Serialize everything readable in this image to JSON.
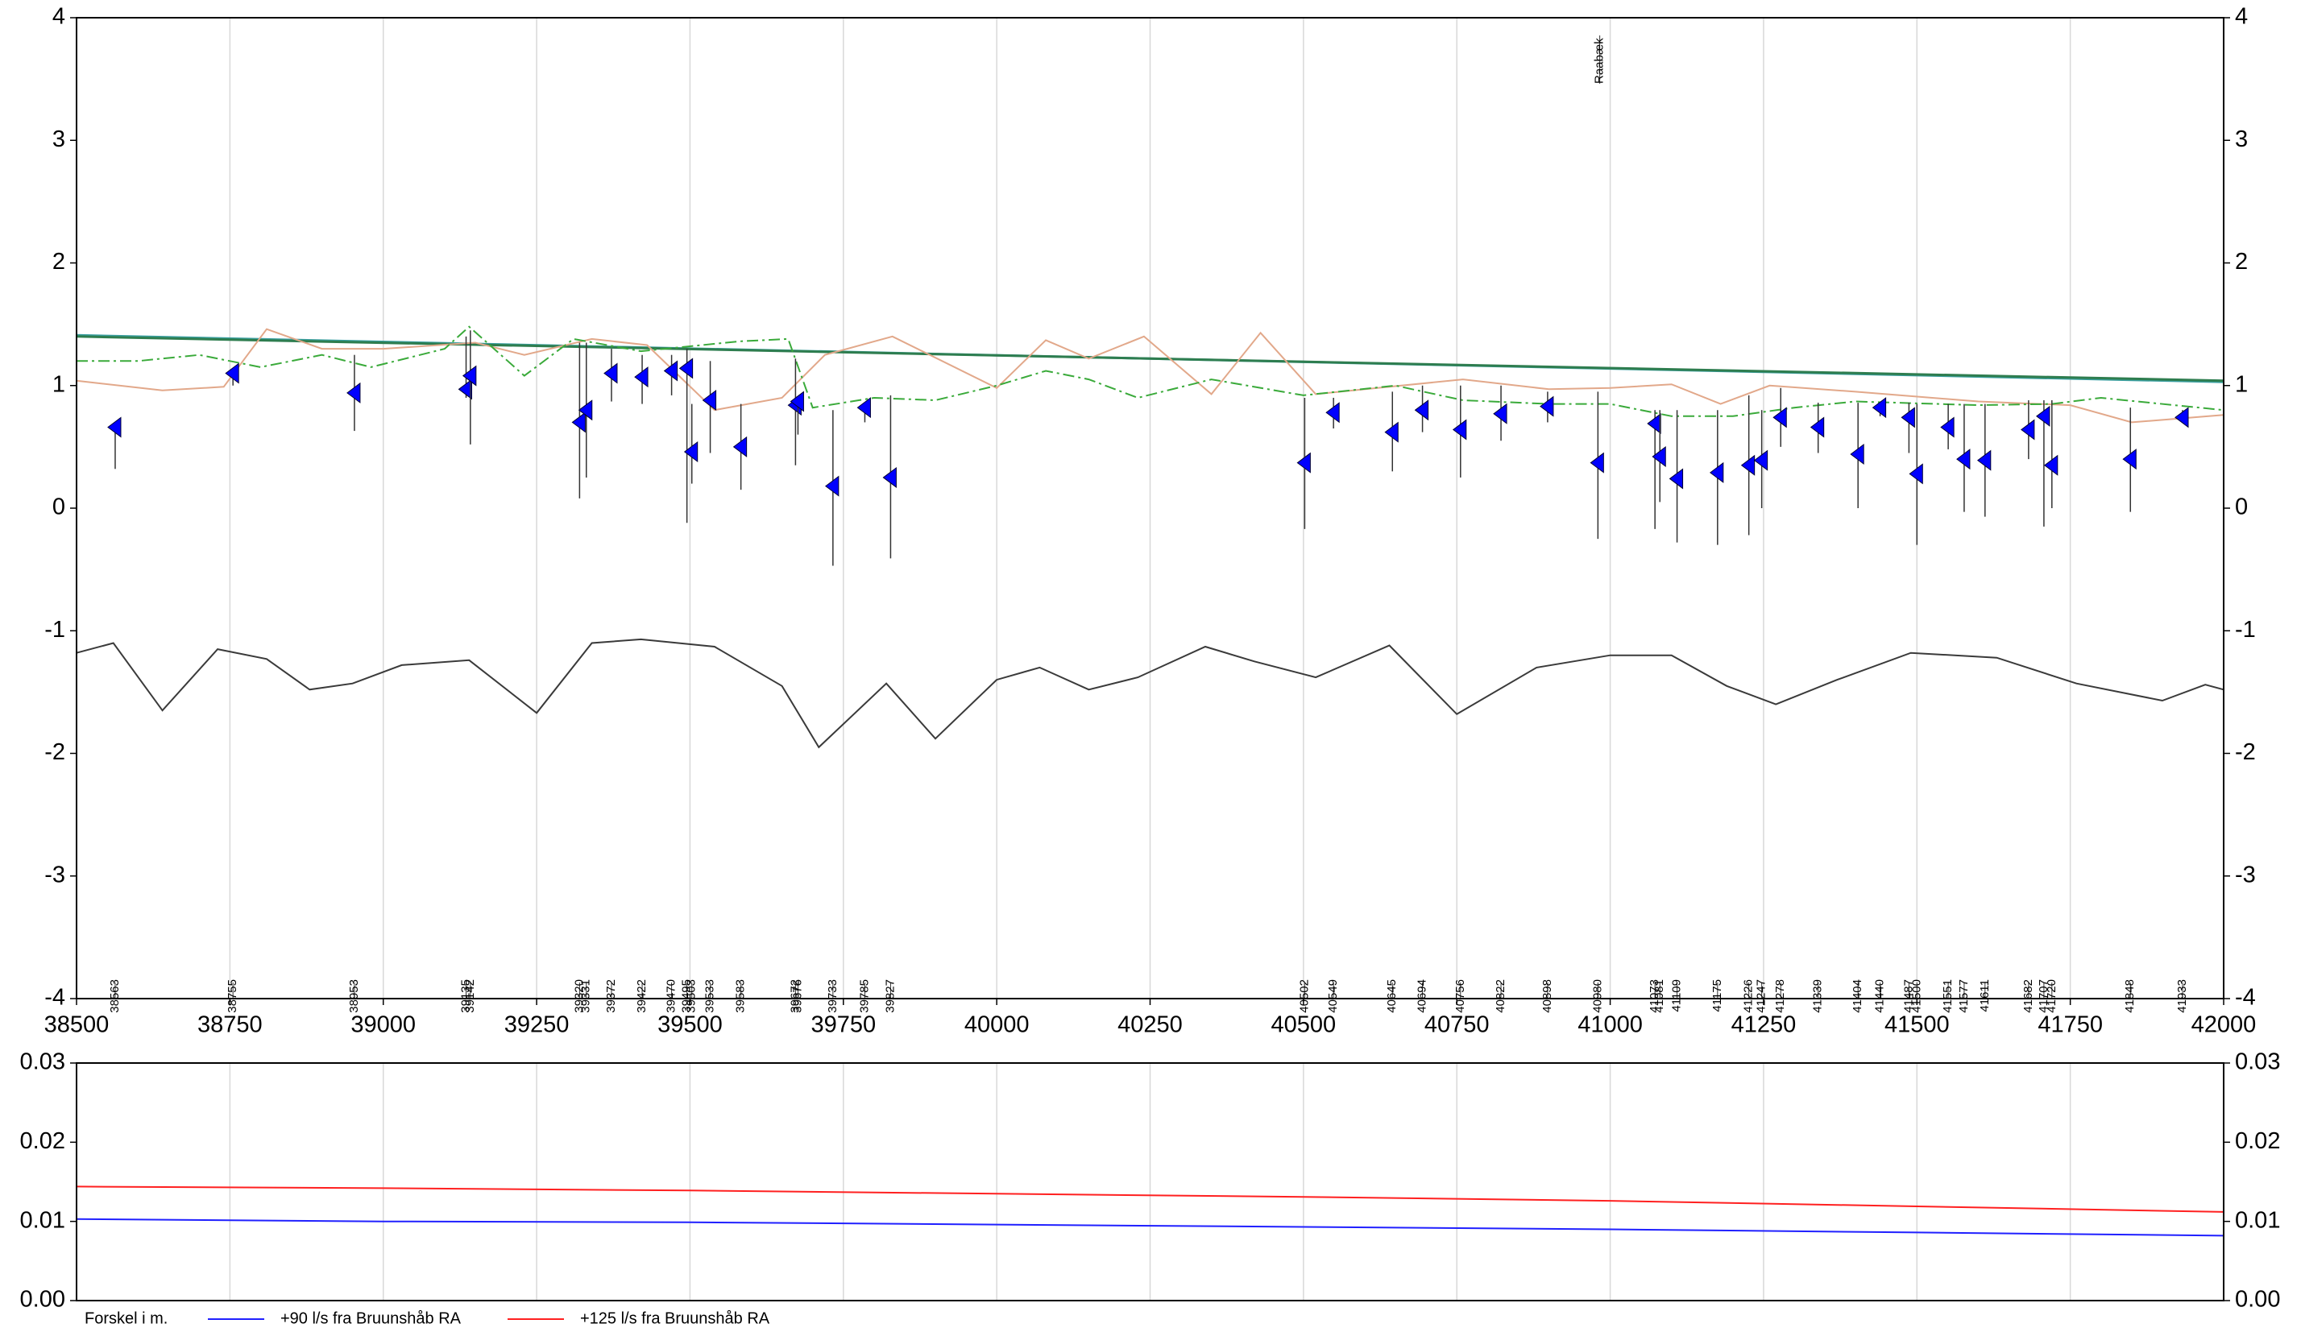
{
  "chart_data": [
    {
      "type": "line",
      "xlim": [
        38500,
        42000
      ],
      "ylim": [
        -4,
        4
      ],
      "xticks": [
        38500,
        38750,
        39000,
        39250,
        39500,
        39750,
        40000,
        40250,
        40500,
        40750,
        41000,
        41250,
        41500,
        41750,
        42000
      ],
      "yticks": [
        -4,
        -3,
        -2,
        -1,
        0,
        1,
        2,
        3,
        4
      ],
      "grid": true,
      "series": [
        {
          "color": "#3a9fa0",
          "x": [
            38500,
            42000
          ],
          "values": [
            1.41,
            1.03
          ]
        },
        {
          "color": "#2e7d4f",
          "x": [
            38500,
            42000
          ],
          "values": [
            1.4,
            1.04
          ]
        },
        {
          "color": "#e2a88a",
          "x": [
            38500,
            38640,
            38740,
            38810,
            38900,
            39000,
            39150,
            39230,
            39340,
            39430,
            39540,
            39650,
            39720,
            39830,
            40000,
            40080,
            40150,
            40240,
            40350,
            40430,
            40520,
            40640,
            40760,
            40900,
            41000,
            41100,
            41180,
            41260,
            41400,
            41600,
            41750,
            41850,
            42000
          ],
          "values": [
            1.04,
            0.96,
            0.99,
            1.46,
            1.3,
            1.3,
            1.35,
            1.25,
            1.38,
            1.33,
            0.8,
            0.9,
            1.25,
            1.4,
            0.98,
            1.37,
            1.22,
            1.4,
            0.93,
            1.43,
            0.93,
            0.99,
            1.05,
            0.97,
            0.98,
            1.01,
            0.85,
            1.0,
            0.95,
            0.87,
            0.84,
            0.7,
            0.76
          ]
        },
        {
          "color": "#3aaa3a",
          "dash": "dashdot",
          "x": [
            38500,
            38600,
            38700,
            38800,
            38900,
            38980,
            39100,
            39140,
            39230,
            39310,
            39420,
            39500,
            39580,
            39660,
            39700,
            39800,
            39900,
            40000,
            40080,
            40150,
            40230,
            40350,
            40500,
            40650,
            40760,
            40900,
            41000,
            41100,
            41200,
            41300,
            41400,
            41600,
            41720,
            41800,
            42000
          ],
          "values": [
            1.2,
            1.2,
            1.25,
            1.15,
            1.25,
            1.15,
            1.3,
            1.48,
            1.08,
            1.38,
            1.28,
            1.32,
            1.36,
            1.38,
            0.82,
            0.9,
            0.88,
            1.0,
            1.12,
            1.05,
            0.9,
            1.05,
            0.92,
            1.0,
            0.88,
            0.85,
            0.85,
            0.75,
            0.75,
            0.82,
            0.87,
            0.84,
            0.85,
            0.9,
            0.8
          ]
        },
        {
          "color": "#3a3a3a",
          "x": [
            38500,
            38560,
            38640,
            38730,
            38810,
            38880,
            38950,
            39030,
            39140,
            39250,
            39340,
            39420,
            39540,
            39650,
            39710,
            39820,
            39900,
            40000,
            40070,
            40150,
            40230,
            40340,
            40420,
            40520,
            40640,
            40750,
            40880,
            41000,
            41100,
            41190,
            41270,
            41370,
            41490,
            41630,
            41760,
            41900,
            41970,
            42000
          ],
          "values": [
            -1.18,
            -1.1,
            -1.65,
            -1.15,
            -1.23,
            -1.48,
            -1.43,
            -1.28,
            -1.24,
            -1.67,
            -1.1,
            -1.07,
            -1.13,
            -1.45,
            -1.95,
            -1.43,
            -1.88,
            -1.4,
            -1.3,
            -1.48,
            -1.38,
            -1.13,
            -1.25,
            -1.38,
            -1.12,
            -1.68,
            -1.3,
            -1.2,
            -1.2,
            -1.45,
            -1.6,
            -1.4,
            -1.18,
            -1.22,
            -1.43,
            -1.57,
            -1.44,
            -1.48
          ]
        }
      ],
      "stations": {
        "color": "#0000ff",
        "x": [
          38563,
          38755,
          38953,
          39135,
          39142,
          39320,
          39331,
          39372,
          39422,
          39470,
          39495,
          39503,
          39533,
          39583,
          39672,
          39676,
          39733,
          39785,
          39827,
          40502,
          40549,
          40645,
          40694,
          40756,
          40822,
          40898,
          40980,
          41073,
          41081,
          41109,
          41175,
          41226,
          41247,
          41278,
          41339,
          41404,
          41440,
          41487,
          41500,
          41551,
          41577,
          41611,
          41682,
          41707,
          41720,
          41848,
          41933
        ],
        "values": [
          0.66,
          1.1,
          0.94,
          0.97,
          1.08,
          0.7,
          0.8,
          1.1,
          1.07,
          1.12,
          1.14,
          0.46,
          0.88,
          0.5,
          0.84,
          0.87,
          0.18,
          0.82,
          0.25,
          0.37,
          0.78,
          0.62,
          0.8,
          0.64,
          0.77,
          0.83,
          0.37,
          0.69,
          0.42,
          0.24,
          0.29,
          0.35,
          0.39,
          0.74,
          0.66,
          0.44,
          0.82,
          0.74,
          0.28,
          0.66,
          0.4,
          0.39,
          0.64,
          0.75,
          0.35,
          0.4,
          0.74
        ],
        "high": [
          0.66,
          1.1,
          1.25,
          1.4,
          1.45,
          1.35,
          1.35,
          1.3,
          1.25,
          1.25,
          1.3,
          0.85,
          1.2,
          0.85,
          1.22,
          0.9,
          0.8,
          0.85,
          0.92,
          0.9,
          0.9,
          0.95,
          1.0,
          1.0,
          1.0,
          0.95,
          0.95,
          0.8,
          0.8,
          0.8,
          0.8,
          0.92,
          0.8,
          0.98,
          0.86,
          0.86,
          0.86,
          0.86,
          0.85,
          0.85,
          0.85,
          0.85,
          0.88,
          0.88,
          0.88,
          0.82,
          0.8
        ],
        "low": [
          0.32,
          1.0,
          0.63,
          0.9,
          0.52,
          0.08,
          0.25,
          0.87,
          0.85,
          0.92,
          -0.12,
          0.2,
          0.45,
          0.15,
          0.35,
          0.6,
          -0.47,
          0.7,
          -0.41,
          -0.17,
          0.65,
          0.3,
          0.62,
          0.25,
          0.55,
          0.7,
          -0.25,
          -0.17,
          0.05,
          -0.28,
          -0.3,
          -0.22,
          0.0,
          0.5,
          0.45,
          0.0,
          0.75,
          0.45,
          -0.3,
          0.48,
          -0.03,
          -0.07,
          0.4,
          -0.15,
          0.0,
          -0.03,
          0.7
        ]
      },
      "annotations": [
        {
          "text": "Raabæk",
          "x": 40983
        }
      ]
    },
    {
      "type": "line",
      "xlim": [
        38500,
        42000
      ],
      "ylim": [
        0,
        0.03
      ],
      "yticks": [
        {
          "value": 0,
          "label": "0.00"
        },
        0.01,
        0.02,
        0.03
      ],
      "legend_title": "Forskel i m.",
      "x": [
        38500,
        39000,
        39500,
        40000,
        40500,
        41000,
        41500,
        42000
      ],
      "series": [
        {
          "name": "+90 l/s fra Bruunshåb RA",
          "color": "#2020ff",
          "values": [
            0.0103,
            0.01,
            0.0099,
            0.0096,
            0.0093,
            0.009,
            0.0086,
            0.0082
          ]
        },
        {
          "name": "+125 l/s fra Bruunshåb RA",
          "color": "#ff2020",
          "values": [
            0.0144,
            0.0142,
            0.0139,
            0.0135,
            0.0131,
            0.0126,
            0.0119,
            0.0112
          ]
        }
      ]
    }
  ]
}
